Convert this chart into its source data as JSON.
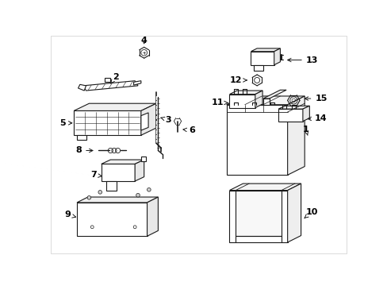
{
  "background_color": "#ffffff",
  "line_color": "#1a1a1a",
  "text_color": "#000000",
  "fig_width": 4.89,
  "fig_height": 3.6,
  "dpi": 100,
  "border_color": "#cccccc"
}
